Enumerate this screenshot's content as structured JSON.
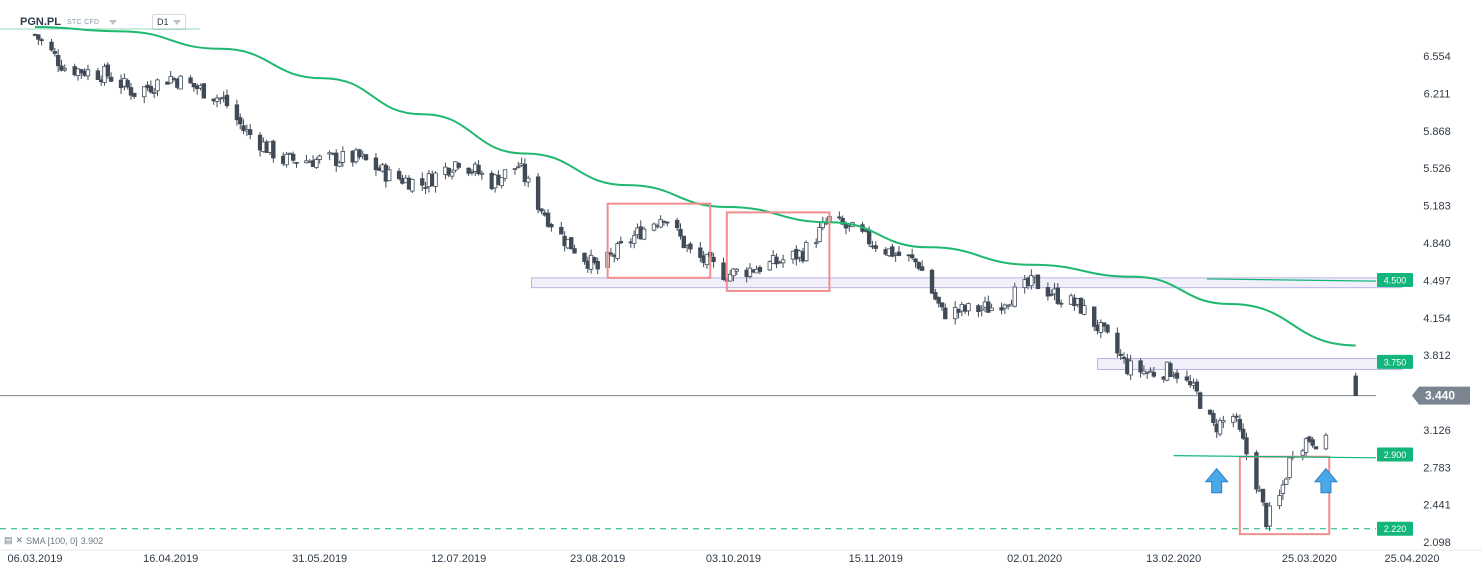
{
  "header": {
    "symbol": "PGN.PL",
    "instrument_type": "STC CFD",
    "timeframe": "D1"
  },
  "indicator": {
    "label": "SMA [100, 0]",
    "value": "3.902",
    "icons": [
      "eye-icon",
      "close-icon"
    ]
  },
  "colors": {
    "up": "#ffffff",
    "down": "#404b57",
    "wick": "#404b57",
    "sma": "#1fb86f",
    "box": "#ef8e8e",
    "zone": "#8f86d4",
    "level": "#12b57a",
    "price": "#7a8591",
    "arrow": "#4aa8e8"
  },
  "chart_data": {
    "type": "candlestick",
    "title": "",
    "symbol": "PGN.PL",
    "timeframe": "D1",
    "current_price": 3.44,
    "y_ticks": [
      "6.554",
      "6.211",
      "5.868",
      "5.526",
      "5.183",
      "4.840",
      "4.497",
      "4.154",
      "3.812",
      "3.126",
      "2.783",
      "2.441",
      "2.098"
    ],
    "x_ticks": [
      "06.03.2019",
      "16.04.2019",
      "31.05.2019",
      "12.07.2019",
      "23.08.2019",
      "03.10.2019",
      "15.11.2019",
      "02.01.2020",
      "13.02.2020",
      "25.03.2020",
      "25.04.2020"
    ],
    "ylim": [
      2.05,
      6.85
    ],
    "xlim": [
      "2019-03-06",
      "2020-04-25"
    ],
    "price_labels": [
      {
        "value": "4.500",
        "type": "level"
      },
      {
        "value": "3.750",
        "type": "level"
      },
      {
        "value": "3.440",
        "type": "current"
      },
      {
        "value": "2.900",
        "type": "level"
      },
      {
        "value": "2.220",
        "type": "level"
      }
    ],
    "close_path": [
      [
        "2019-03-06",
        6.75
      ],
      [
        "2019-03-15",
        6.45
      ],
      [
        "2019-03-28",
        6.38
      ],
      [
        "2019-04-05",
        6.22
      ],
      [
        "2019-04-16",
        6.36
      ],
      [
        "2019-04-25",
        6.25
      ],
      [
        "2019-05-02",
        6.15
      ],
      [
        "2019-05-08",
        5.88
      ],
      [
        "2019-05-20",
        5.6
      ],
      [
        "2019-05-31",
        5.6
      ],
      [
        "2019-06-12",
        5.62
      ],
      [
        "2019-06-21",
        5.46
      ],
      [
        "2019-07-01",
        5.38
      ],
      [
        "2019-07-12",
        5.6
      ],
      [
        "2019-07-22",
        5.4
      ],
      [
        "2019-07-30",
        5.55
      ],
      [
        "2019-08-05",
        5.2
      ],
      [
        "2019-08-12",
        4.9
      ],
      [
        "2019-08-23",
        4.6
      ],
      [
        "2019-09-05",
        4.95
      ],
      [
        "2019-09-12",
        5.1
      ],
      [
        "2019-09-20",
        4.75
      ],
      [
        "2019-10-01",
        4.55
      ],
      [
        "2019-10-15",
        4.65
      ],
      [
        "2019-10-24",
        4.75
      ],
      [
        "2019-11-01",
        5.05
      ],
      [
        "2019-11-08",
        4.95
      ],
      [
        "2019-11-18",
        4.78
      ],
      [
        "2019-11-28",
        4.65
      ],
      [
        "2019-12-05",
        4.2
      ],
      [
        "2019-12-12",
        4.22
      ],
      [
        "2019-12-20",
        4.25
      ],
      [
        "2020-01-02",
        4.48
      ],
      [
        "2020-01-09",
        4.35
      ],
      [
        "2020-01-16",
        4.25
      ],
      [
        "2020-01-23",
        4.0
      ],
      [
        "2020-01-30",
        3.7
      ],
      [
        "2020-02-06",
        3.65
      ],
      [
        "2020-02-13",
        3.68
      ],
      [
        "2020-02-20",
        3.45
      ],
      [
        "2020-02-25",
        3.15
      ],
      [
        "2020-03-02",
        3.25
      ],
      [
        "2020-03-05",
        3.0
      ],
      [
        "2020-03-09",
        2.65
      ],
      [
        "2020-03-12",
        2.3
      ],
      [
        "2020-03-16",
        2.5
      ],
      [
        "2020-03-20",
        2.95
      ],
      [
        "2020-03-25",
        3.05
      ],
      [
        "2020-03-30",
        3.0
      ]
    ],
    "last_candle": {
      "date": "2020-04-08",
      "open": 3.62,
      "high": 3.65,
      "low": 3.44,
      "close": 3.44
    },
    "series": [
      {
        "name": "SMA [100, 0]",
        "type": "line",
        "points": [
          [
            "2019-03-06",
            6.82
          ],
          [
            "2019-04-01",
            6.78
          ],
          [
            "2019-05-01",
            6.62
          ],
          [
            "2019-06-01",
            6.35
          ],
          [
            "2019-07-01",
            6.02
          ],
          [
            "2019-08-01",
            5.66
          ],
          [
            "2019-09-01",
            5.37
          ],
          [
            "2019-10-01",
            5.17
          ],
          [
            "2019-11-01",
            5.03
          ],
          [
            "2019-12-01",
            4.8
          ],
          [
            "2020-01-01",
            4.64
          ],
          [
            "2020-02-01",
            4.53
          ],
          [
            "2020-03-01",
            4.28
          ],
          [
            "2020-04-08",
            3.9
          ]
        ]
      }
    ],
    "annotations": {
      "rectangles": [
        {
          "from": "2019-08-26",
          "to": "2019-09-26",
          "low": 4.52,
          "high": 5.2
        },
        {
          "from": "2019-10-01",
          "to": "2019-11-01",
          "low": 4.4,
          "high": 5.12
        },
        {
          "from": "2020-03-04",
          "to": "2020-03-31",
          "low": 2.17,
          "high": 2.88
        }
      ],
      "zones": [
        {
          "from": "2019-08-03",
          "to": "2020-04-22",
          "low": 4.43,
          "high": 4.52
        },
        {
          "from": "2020-01-21",
          "to": "2020-04-22",
          "low": 3.68,
          "high": 3.78
        }
      ],
      "lines": [
        {
          "from": "2020-02-23",
          "to": "2020-04-22",
          "y1": 4.51,
          "y2": 4.49
        },
        {
          "from": "2020-02-13",
          "to": "2020-04-22",
          "y1": 2.89,
          "y2": 2.87
        }
      ],
      "dashed_levels": [
        2.22
      ],
      "arrows": [
        {
          "date": "2020-02-26",
          "direction": "up"
        },
        {
          "date": "2020-03-30",
          "direction": "up"
        }
      ]
    },
    "grid": false,
    "legend": "bottom-left"
  }
}
